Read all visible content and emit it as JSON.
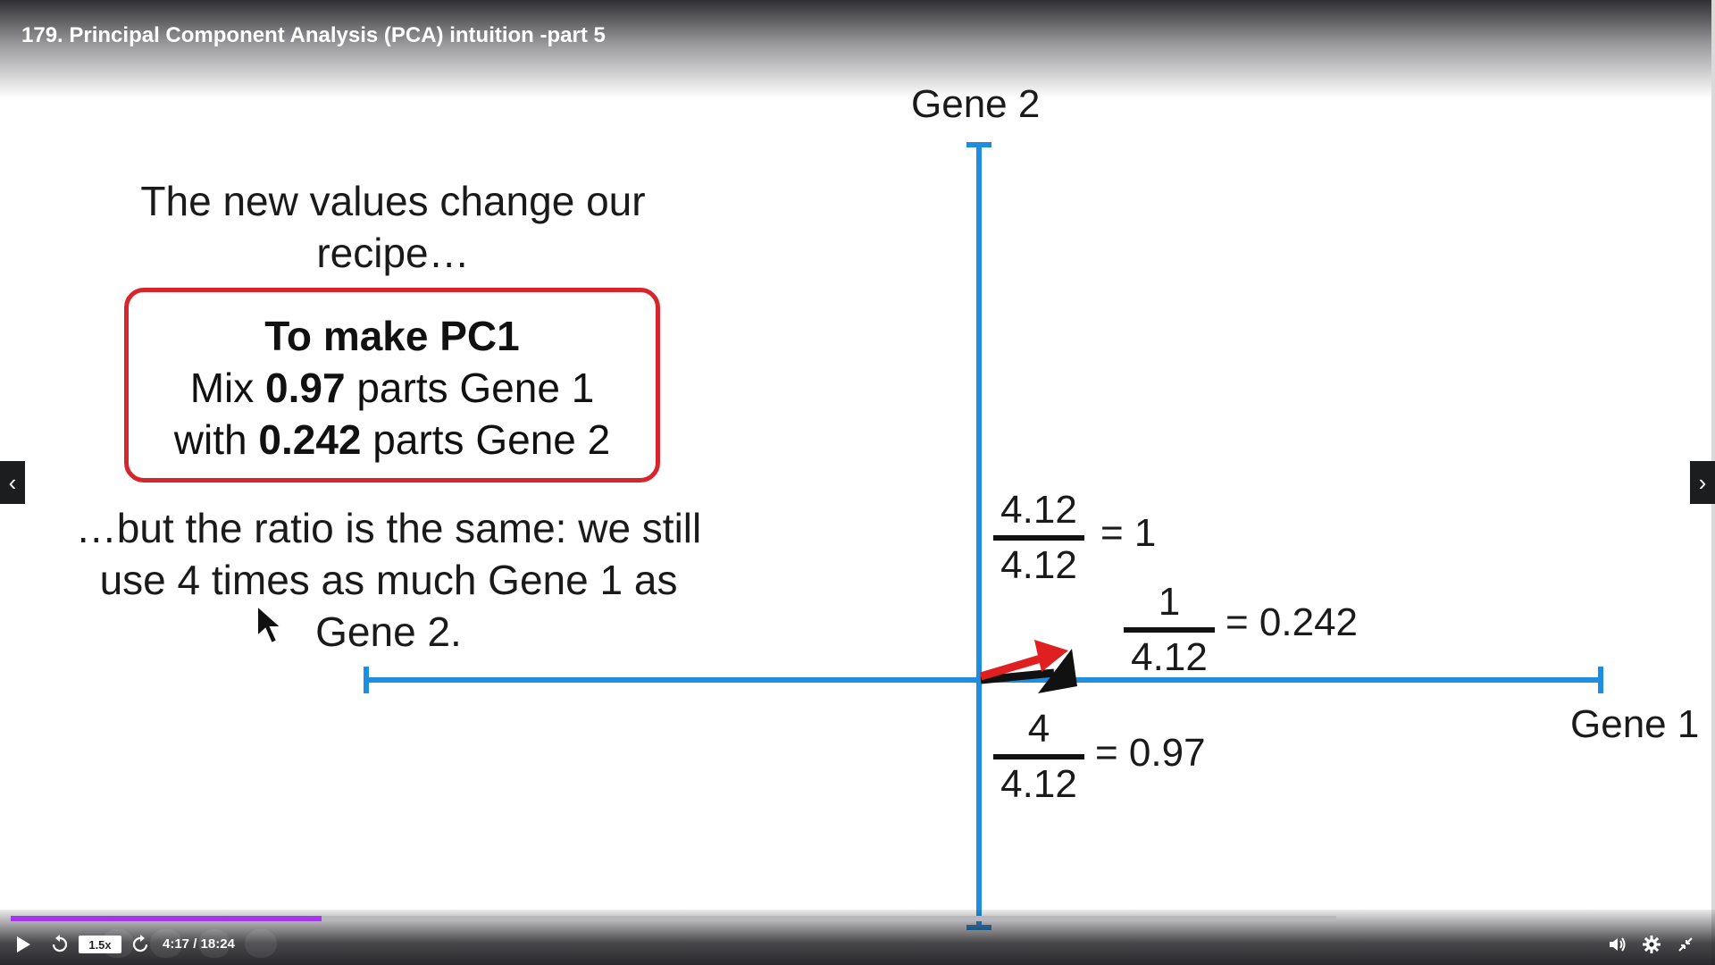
{
  "player": {
    "title": "179. Principal Component Analysis (PCA) intuition -part 5",
    "time_display": "4:17 / 18:24",
    "speed_label": "1.5x",
    "progress": 0.2345,
    "icons": {
      "play": "play-icon",
      "rewind": "rewind-icon",
      "forward": "forward-icon",
      "volume": "volume-icon",
      "settings": "gear-icon",
      "fullscreen": "exit-fullscreen-icon",
      "prev": "chevron-left-icon",
      "next": "chevron-right-icon"
    },
    "accent_color": "#a435f0"
  },
  "slide": {
    "heading": "The new values change our recipe…",
    "recipe": {
      "title": "To make PC1",
      "line2_pre": "Mix ",
      "line2_val": "0.97",
      "line2_post": " parts Gene 1",
      "line3_pre": "with ",
      "line3_val": "0.242",
      "line3_post": " parts Gene 2",
      "border_color": "#d8242b"
    },
    "ratio_text": "…but the ratio is the same: we still use 4 times as much Gene 1 as Gene 2.",
    "axis_y_label": "Gene 2",
    "axis_x_label": "Gene 1",
    "axis_color": "#1f8ee0",
    "fractions": [
      {
        "num": "4.12",
        "den": "4.12",
        "result": "= 1"
      },
      {
        "num": "1",
        "den": "4.12",
        "result": "= 0.242"
      },
      {
        "num": "4",
        "den": "4.12",
        "result": "= 0.97"
      }
    ],
    "arrow_colors": {
      "red": "#e02020",
      "black": "#111111"
    }
  }
}
